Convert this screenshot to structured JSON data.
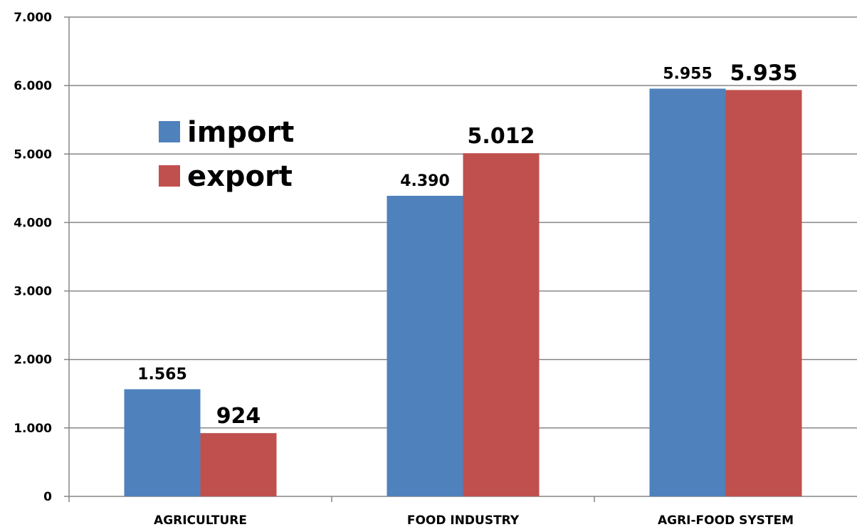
{
  "chart_data": {
    "type": "bar",
    "categories": [
      "AGRICULTURE",
      "FOOD INDUSTRY",
      "AGRI-FOOD SYSTEM"
    ],
    "series": [
      {
        "name": "import",
        "values": [
          1565,
          4390,
          5955
        ],
        "labels": [
          "1.565",
          "4.390",
          "5.955"
        ],
        "color": "#4F81BD"
      },
      {
        "name": "export",
        "values": [
          924,
          5012,
          5935
        ],
        "labels": [
          "924",
          "5.012",
          "5.935"
        ],
        "color": "#C0504D"
      }
    ],
    "y_ticks": [
      0,
      1000,
      2000,
      3000,
      4000,
      5000,
      6000,
      7000
    ],
    "y_tick_labels": [
      "0",
      "1.000",
      "2.000",
      "3.000",
      "4.000",
      "5.000",
      "6.000",
      "7.000"
    ],
    "ylim": [
      0,
      7000
    ],
    "grid": true,
    "legend_position": "top-left"
  }
}
